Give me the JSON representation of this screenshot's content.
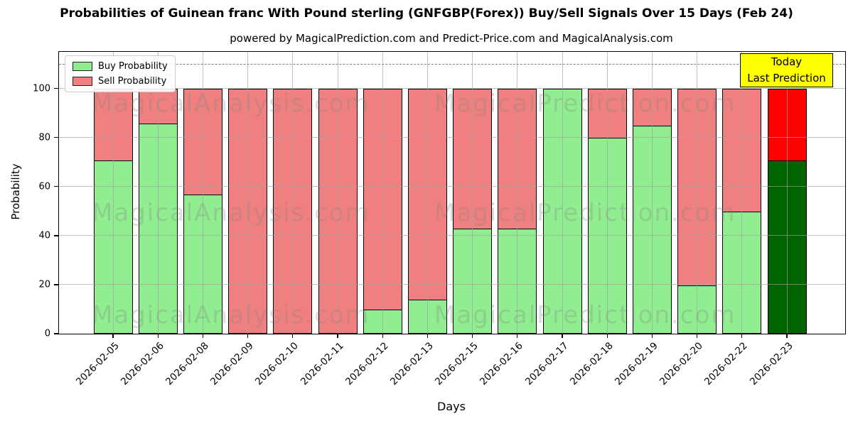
{
  "title": "Probabilities of Guinean franc With Pound sterling (GNFGBP(Forex)) Buy/Sell Signals Over 15 Days (Feb 24)",
  "subtitle": "powered by MagicalPrediction.com and Predict-Price.com and MagicalAnalysis.com",
  "legend": {
    "buy_label": "Buy Probability",
    "sell_label": "Sell Probability"
  },
  "annotation_box": {
    "line1": "Today",
    "line2": "Last Prediction",
    "bg_color": "#FFFF00"
  },
  "watermarks": {
    "left_text": "MagicalAnalysis.com",
    "right_text": "MagicalPrediction.com"
  },
  "colors": {
    "buy": "#90EE90",
    "sell": "#F08080",
    "today_buy": "#006400",
    "today_sell": "#FF0000",
    "bar_edge": "#000000",
    "grid": "#a0a0a0",
    "dashed_line": "#7f7f7f"
  },
  "chart_data": {
    "type": "bar",
    "stacked": true,
    "title": "Probabilities of Guinean franc With Pound sterling (GNFGBP(Forex)) Buy/Sell Signals Over 15 Days (Feb 24)",
    "xlabel": "Days",
    "ylabel": "Probability",
    "categories": [
      "2026-02-05",
      "2026-02-06",
      "2026-02-08",
      "2026-02-09",
      "2026-02-10",
      "2026-02-11",
      "2026-02-12",
      "2026-02-13",
      "2026-02-15",
      "2026-02-16",
      "2026-02-17",
      "2026-02-18",
      "2026-02-19",
      "2026-02-20",
      "2026-02-22",
      "2026-02-23"
    ],
    "series": [
      {
        "name": "Buy Probability",
        "values": [
          71,
          86,
          57,
          0,
          0,
          0,
          10,
          14,
          43,
          43,
          100,
          80,
          85,
          20,
          50,
          71
        ]
      },
      {
        "name": "Sell Probability",
        "values": [
          29,
          14,
          43,
          100,
          100,
          100,
          90,
          86,
          57,
          57,
          0,
          20,
          15,
          80,
          50,
          29
        ]
      }
    ],
    "today_index": 15,
    "yticks": [
      0,
      20,
      40,
      60,
      80,
      100
    ],
    "ylim": [
      0,
      115
    ],
    "dashed_line_y": 110,
    "grid": true,
    "legend_position": "upper left"
  }
}
